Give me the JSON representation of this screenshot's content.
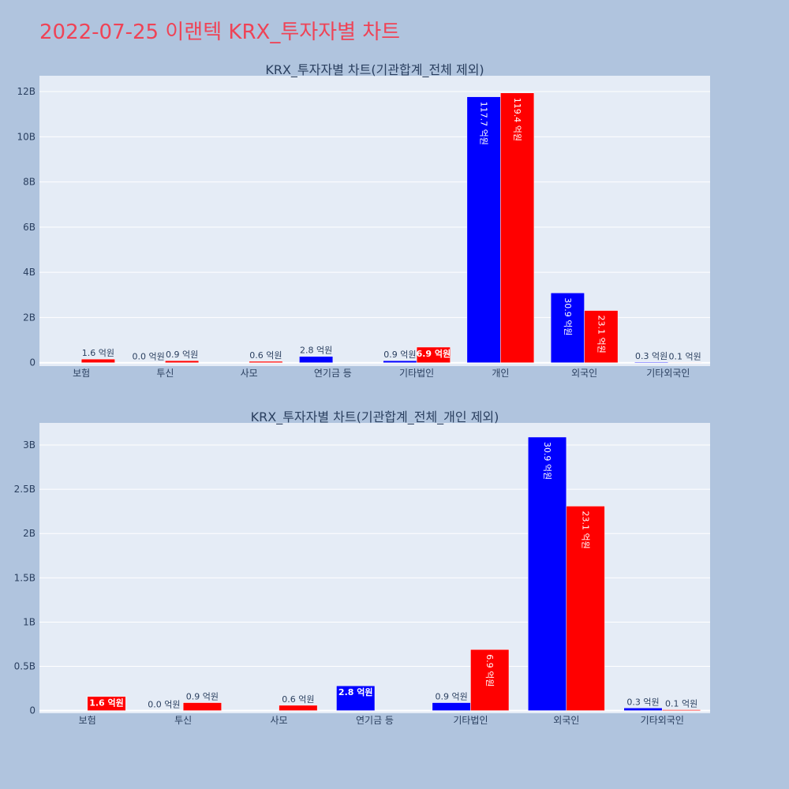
{
  "page": {
    "title": "2022-07-25 이랜텍 KRX_투자자별 차트"
  },
  "colors": {
    "buy": "#0000ff",
    "sell": "#ff0000",
    "plot_bg": "#e5ecf6",
    "page_bg": "#b0c4de",
    "title": "#ef4356"
  },
  "chart_data": [
    {
      "type": "bar",
      "title": "KRX_투자자별 차트(기관합계_전체 제외)",
      "categories": [
        "보험",
        "투신",
        "사모",
        "연기금 등",
        "기타법인",
        "개인",
        "외국인",
        "기타외국인"
      ],
      "series": [
        {
          "color": "#0000ff",
          "values": [
            0,
            0.0,
            0,
            2.8,
            0.9,
            117.7,
            30.9,
            0.3
          ],
          "labels": [
            "",
            "0.0 억원",
            "",
            "2.8 억원",
            "0.9 억원",
            "117.7 억원",
            "30.9 억원",
            "0.3 억원"
          ]
        },
        {
          "color": "#ff0000",
          "values": [
            1.6,
            0.9,
            0.6,
            0,
            6.9,
            119.4,
            23.1,
            0.1
          ],
          "labels": [
            "1.6 억원",
            "0.9 억원",
            "0.6 억원",
            "",
            "6.9 억원",
            "119.4 억원",
            "23.1 억원",
            "0.1 억원"
          ]
        }
      ],
      "yticks": [
        0,
        20,
        40,
        60,
        80,
        100,
        120
      ],
      "ytick_labels": [
        "0",
        "2B",
        "4B",
        "6B",
        "8B",
        "10B",
        "12B"
      ],
      "ylim": [
        -1.5,
        127
      ],
      "grid": true
    },
    {
      "type": "bar",
      "title": "KRX_투자자별 차트(기관합계_전체_개인 제외)",
      "categories": [
        "보험",
        "투신",
        "사모",
        "연기금 등",
        "기타법인",
        "외국인",
        "기타외국인"
      ],
      "series": [
        {
          "color": "#0000ff",
          "values": [
            0,
            0.0,
            0,
            2.8,
            0.9,
            30.9,
            0.3
          ],
          "labels": [
            "",
            "0.0 억원",
            "",
            "2.8 억원",
            "0.9 억원",
            "30.9 억원",
            "0.3 억원"
          ]
        },
        {
          "color": "#ff0000",
          "values": [
            1.6,
            0.9,
            0.6,
            0,
            6.9,
            23.1,
            0.1
          ],
          "labels": [
            "1.6 억원",
            "0.9 억원",
            "0.6 억원",
            "",
            "6.9 억원",
            "23.1 억원",
            "0.1 억원"
          ]
        }
      ],
      "yticks": [
        0,
        5,
        10,
        15,
        20,
        25,
        30
      ],
      "ytick_labels": [
        "0",
        "0.5B",
        "1B",
        "1.5B",
        "2B",
        "2.5B",
        "3B"
      ],
      "ylim": [
        -0.3,
        32.5
      ],
      "grid": true
    }
  ]
}
